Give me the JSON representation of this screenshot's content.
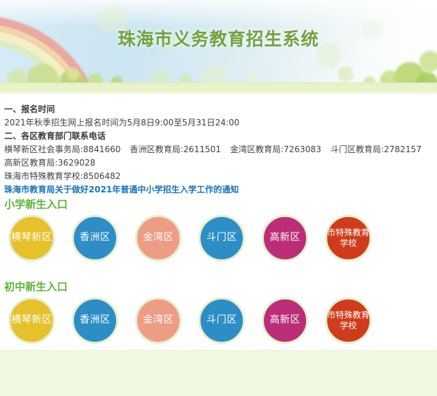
{
  "banner": {
    "title": "珠海市义务教育招生系统",
    "title_color": "#73a23d"
  },
  "info": {
    "section1_title": "一、报名时间",
    "section1_body": "2021年秋季招生网上报名时间为5月8日9:00至5月31日24:00",
    "section2_title": "二、各区教育部门联系电话",
    "contacts": [
      "横琴新区社会事务局:8841660",
      "香洲区教育局:2611501",
      "金湾区教育局:7263083",
      "斗门区教育局:2782157",
      "高新区教育局:3629028"
    ],
    "special_contact": "珠海市特殊教育学校:8506482",
    "notice_link": "珠海市教育局关于做好2021年普通中小学招生入学工作的通知",
    "link_color": "#1a74b8"
  },
  "entries": {
    "primary_heading": "小学新生入口",
    "junior_heading": "初中新生入口",
    "heading_color": "#5cb338",
    "ring_color": "#e3efcc",
    "buttons": [
      {
        "label": "横琴新区",
        "color": "#e6c12b"
      },
      {
        "label": "香洲区",
        "color": "#2d8dc5"
      },
      {
        "label": "金湾区",
        "color": "#ee9d85"
      },
      {
        "label": "斗门区",
        "color": "#2d8dc5"
      },
      {
        "label": "高新区",
        "color": "#bb2d76"
      },
      {
        "label": "市特殊教育\n学校",
        "color": "#cf3c1b"
      }
    ]
  }
}
